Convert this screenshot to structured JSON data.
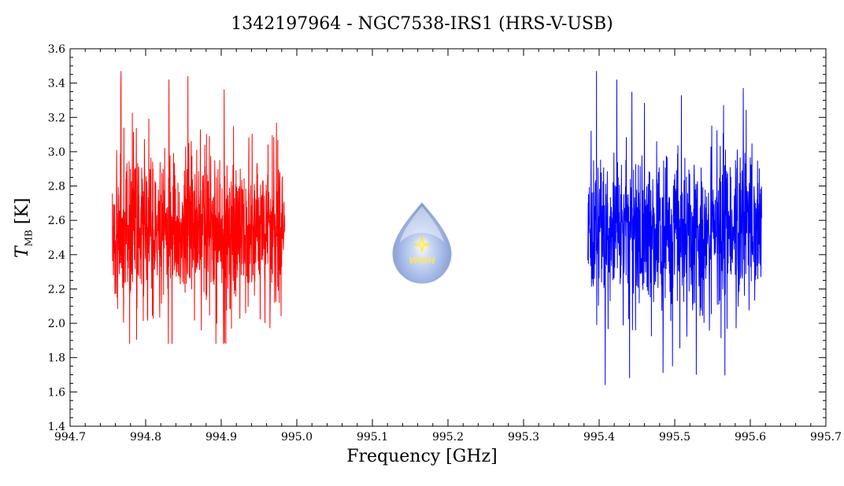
{
  "chart_data": {
    "type": "line",
    "title": "1342197964 - NGC7538-IRS1 (HRS-V-USB)",
    "xlabel": "Frequency [GHz]",
    "ylabel_symbol": "T",
    "ylabel_subscript": "MB",
    "ylabel_unit": "[K]",
    "xlim": [
      994.7,
      995.7
    ],
    "ylim": [
      1.4,
      3.6
    ],
    "x_ticks": [
      "994.7",
      "994.8",
      "994.9",
      "995.0",
      "995.1",
      "995.2",
      "995.3",
      "995.4",
      "995.5",
      "995.6",
      "995.7"
    ],
    "y_ticks": [
      "1.4",
      "1.6",
      "1.8",
      "2.0",
      "2.2",
      "2.4",
      "2.6",
      "2.8",
      "3.0",
      "3.2",
      "3.4",
      "3.6"
    ],
    "series": [
      {
        "color": "#ff0000",
        "x_range": [
          994.756,
          994.984
        ],
        "mean": 2.55,
        "min": 1.88,
        "max": 3.47
      },
      {
        "color": "#0000ff",
        "x_range": [
          995.385,
          995.615
        ],
        "mean": 2.55,
        "min": 1.64,
        "max": 3.47
      }
    ]
  },
  "logo": {
    "text": "WISH"
  }
}
